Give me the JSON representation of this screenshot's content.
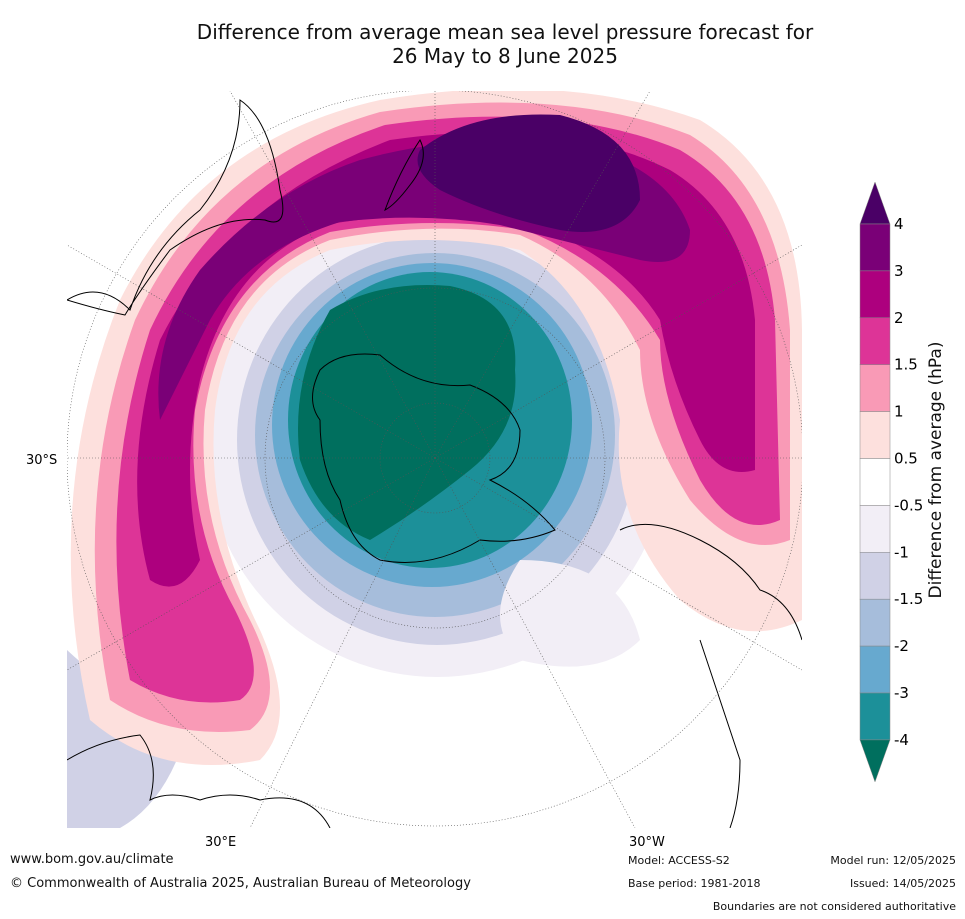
{
  "title": {
    "line1": "Difference from average mean sea level pressure forecast for",
    "line2": "26 May to 8 June 2025"
  },
  "map": {
    "projection": "south polar stereographic",
    "lat_label": "30°S",
    "lon_labels": [
      "30°E",
      "30°W"
    ],
    "anomaly_pattern": [
      {
        "region": "Antarctica and surrounding ocean",
        "range": "-4 to -3",
        "color": "#006f5e"
      },
      {
        "region": "ring around Antarctica",
        "range": "-3 to -1",
        "color": "#1b8f96"
      },
      {
        "region": "Tasman Sea / south of Australia to South Pacific arc",
        "range": "2 to 4",
        "color": "#7a0077"
      },
      {
        "region": "South Pacific east of New Zealand",
        "range": "above 4",
        "color": "#4a0066"
      }
    ]
  },
  "colorbar": {
    "label": "Difference from average (hPa)",
    "ticks": [
      "4",
      "3",
      "2",
      "1.5",
      "1",
      "0.5",
      "-0.5",
      "-1",
      "-1.5",
      "-2",
      "-3",
      "-4"
    ],
    "colors": [
      "#4a0066",
      "#7a0077",
      "#ad007e",
      "#dd3497",
      "#f99ab6",
      "#fde0dd",
      "#ffffff",
      "#f2eef6",
      "#d0d1e6",
      "#a6bddb",
      "#67a9cf",
      "#1c9099",
      "#006f5e"
    ]
  },
  "footer": {
    "website": "www.bom.gov.au/climate",
    "copyright": "© Commonwealth of Australia 2025, Australian Bureau of Meteorology",
    "model": "Model: ACCESS-S2",
    "base_period": "Base period: 1981-2018",
    "model_run": "Model run: 12/05/2025",
    "issued": "Issued: 14/05/2025",
    "disclaimer": "Boundaries are not considered authoritative"
  }
}
